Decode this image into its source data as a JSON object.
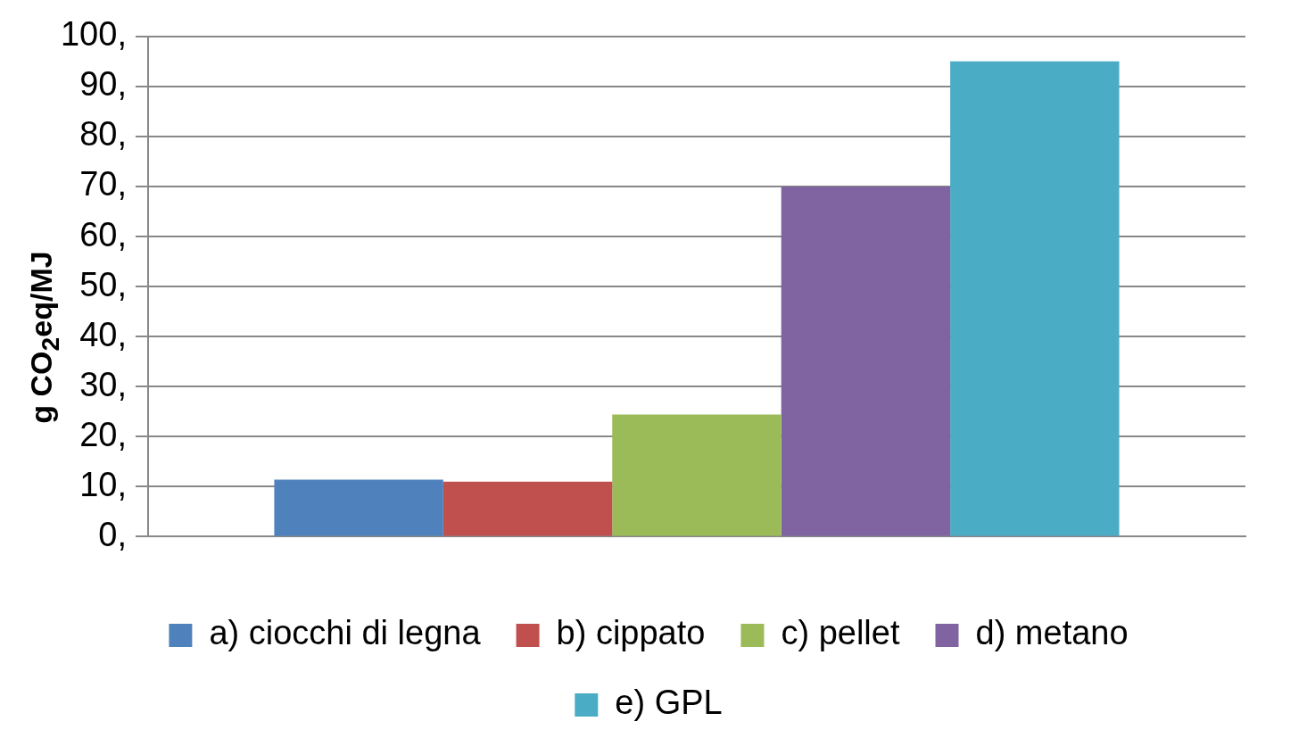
{
  "chart_data": {
    "type": "bar",
    "ylabel": "g CO$_{2}$eq/MJ",
    "categories": [
      null
    ],
    "series": [
      {
        "name": "a) ciocchi di legna",
        "color": "#4f81bd",
        "values": [
          11.4
        ]
      },
      {
        "name": "b) cippato",
        "color": "#c0504d",
        "values": [
          11
        ]
      },
      {
        "name": "c) pellet",
        "color": "#9bbb59",
        "values": [
          24.4
        ]
      },
      {
        "name": "d) metano",
        "color": "#8064a2",
        "values": [
          70
        ]
      },
      {
        "name": "e) GPL",
        "color": "#4bacc6",
        "values": [
          95
        ]
      }
    ],
    "ylim": [
      0,
      100
    ],
    "yticks": [
      {
        "value": 0,
        "label": "0,"
      },
      {
        "value": 10,
        "label": "10,"
      },
      {
        "value": 20,
        "label": "20,"
      },
      {
        "value": 30,
        "label": "30,"
      },
      {
        "value": 40,
        "label": "40,"
      },
      {
        "value": 50,
        "label": "50,"
      },
      {
        "value": 60,
        "label": "60,"
      },
      {
        "value": 70,
        "label": "70,"
      },
      {
        "value": 80,
        "label": "80,"
      },
      {
        "value": 90,
        "label": "90,"
      },
      {
        "value": 100,
        "label": "100,"
      }
    ],
    "grid": "y",
    "legend": "bottom"
  }
}
